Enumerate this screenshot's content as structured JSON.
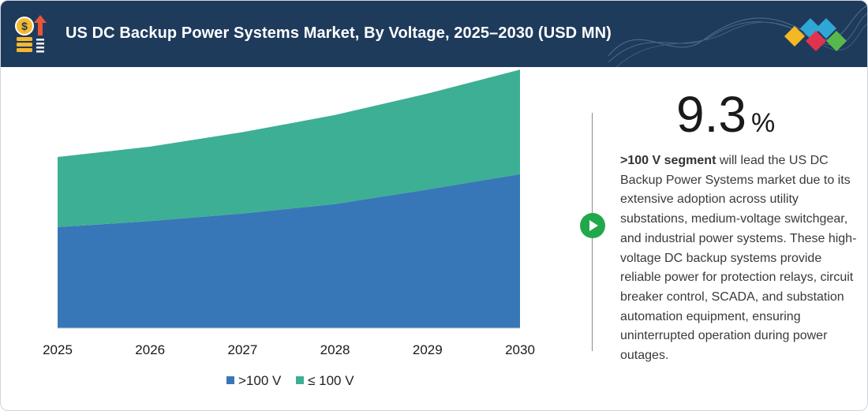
{
  "header": {
    "title": "US DC Backup Power Systems Market, By Voltage, 2025–2030 (USD MN)",
    "icon": "coin-growth-icon",
    "logo": "brand-diamond-logo-icon"
  },
  "chart_data": {
    "type": "area",
    "stacked": true,
    "x": [
      "2025",
      "2026",
      "2027",
      "2028",
      "2029",
      "2030"
    ],
    "series": [
      {
        "name": ">100 V",
        "values": [
          118,
          125,
          134,
          145,
          162,
          180
        ],
        "color": "#3777b8"
      },
      {
        "name": "≤ 100 V",
        "values": [
          82,
          87,
          95,
          104,
          112,
          122
        ],
        "color": "#3daf94"
      }
    ],
    "ylim": [
      0,
      305
    ],
    "grid": false,
    "legend_position": "bottom"
  },
  "highlight": {
    "value": "9.3",
    "unit": "%",
    "bold_text": ">100 V segment",
    "body": " will lead the US DC Backup Power Systems market due to its extensive adoption across utility substations, medium-voltage switchgear, and industrial power systems. These high-voltage DC backup systems provide reliable power for protection relays, circuit breaker control, SCADA, and substation automation equipment, ensuring uninterrupted operation during power outages."
  },
  "colors": {
    "header_bg": "#1f3b5c",
    "accent_green": "#21a84a",
    "series_blue": "#3777b8",
    "series_teal": "#3daf94"
  }
}
